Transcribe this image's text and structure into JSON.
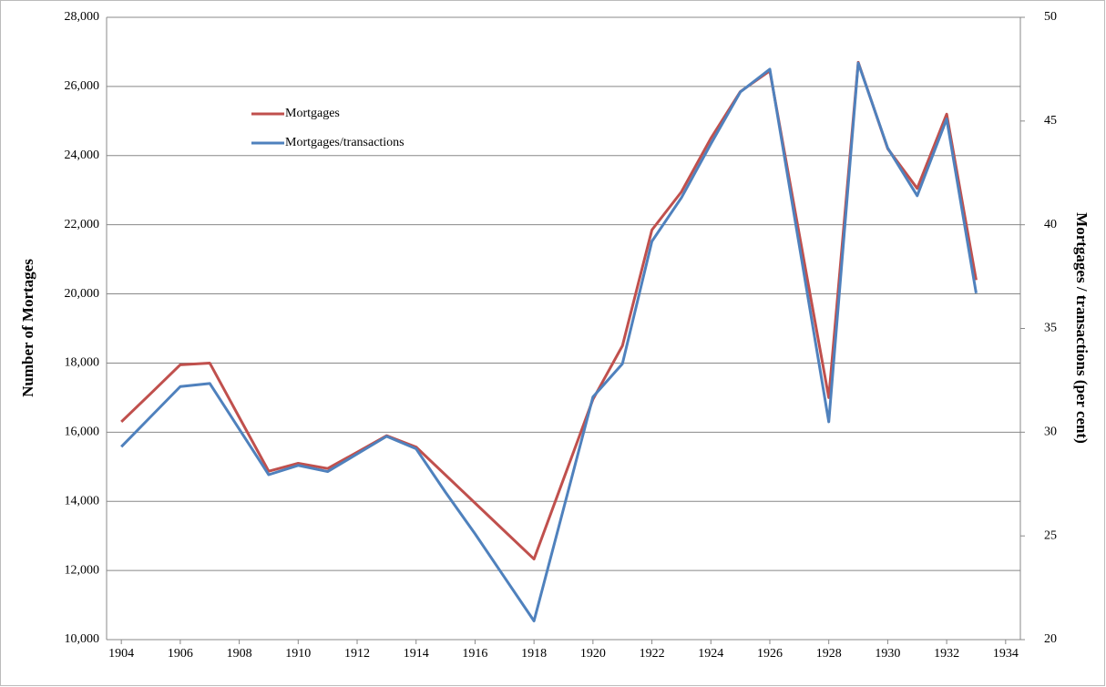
{
  "chart_data": {
    "type": "line",
    "y_label": "Number of Mortages",
    "y2_label": "Mortgages / transactions (per cent)",
    "x": [
      1904,
      1905,
      1906,
      1907,
      1908,
      1909,
      1910,
      1911,
      1912,
      1913,
      1914,
      1915,
      1916,
      1917,
      1918,
      1919,
      1920,
      1921,
      1922,
      1923,
      1924,
      1925,
      1926,
      1927,
      1928,
      1929,
      1930,
      1931,
      1932,
      1933
    ],
    "series": [
      {
        "name": "Mortgages",
        "color": "#c0504d",
        "values": [
          16300,
          17120,
          17950,
          18000,
          16430,
          14870,
          15100,
          14950,
          15420,
          15900,
          15570,
          14760,
          13950,
          13140,
          12330,
          14640,
          16950,
          18500,
          21850,
          22950,
          24500,
          25850,
          26450,
          21720,
          17000,
          26700,
          24200,
          23050,
          25200,
          20400
        ]
      },
      {
        "name": "Mortgages/transactions",
        "color": "#4f81bd",
        "axis": "y2",
        "values": [
          29.3,
          30.75,
          32.2,
          32.35,
          30.15,
          27.95,
          28.4,
          28.1,
          28.95,
          29.8,
          29.2,
          27.1,
          25.1,
          23.0,
          20.9,
          26.3,
          31.7,
          33.3,
          39.2,
          41.3,
          43.9,
          46.4,
          47.5,
          39.0,
          30.5,
          47.8,
          43.7,
          41.4,
          45.1,
          36.7
        ]
      }
    ],
    "xlim": [
      1903.5,
      1934.5
    ],
    "xticks": [
      1904,
      1906,
      1908,
      1910,
      1912,
      1914,
      1916,
      1918,
      1920,
      1922,
      1924,
      1926,
      1928,
      1930,
      1932,
      1934
    ],
    "ylim": [
      10000,
      28000
    ],
    "yticks": [
      {
        "value": 10000,
        "label": "10,000"
      },
      {
        "value": 12000,
        "label": "12,000"
      },
      {
        "value": 14000,
        "label": "14,000"
      },
      {
        "value": 16000,
        "label": "16,000"
      },
      {
        "value": 18000,
        "label": "18,000"
      },
      {
        "value": 20000,
        "label": "20,000"
      },
      {
        "value": 22000,
        "label": "22,000"
      },
      {
        "value": 24000,
        "label": "24,000"
      },
      {
        "value": 26000,
        "label": "26,000"
      },
      {
        "value": 28000,
        "label": "28,000"
      }
    ],
    "y2lim": [
      20,
      50
    ],
    "y2ticks": [
      20,
      25,
      30,
      35,
      40,
      45,
      50
    ],
    "grid": true
  }
}
